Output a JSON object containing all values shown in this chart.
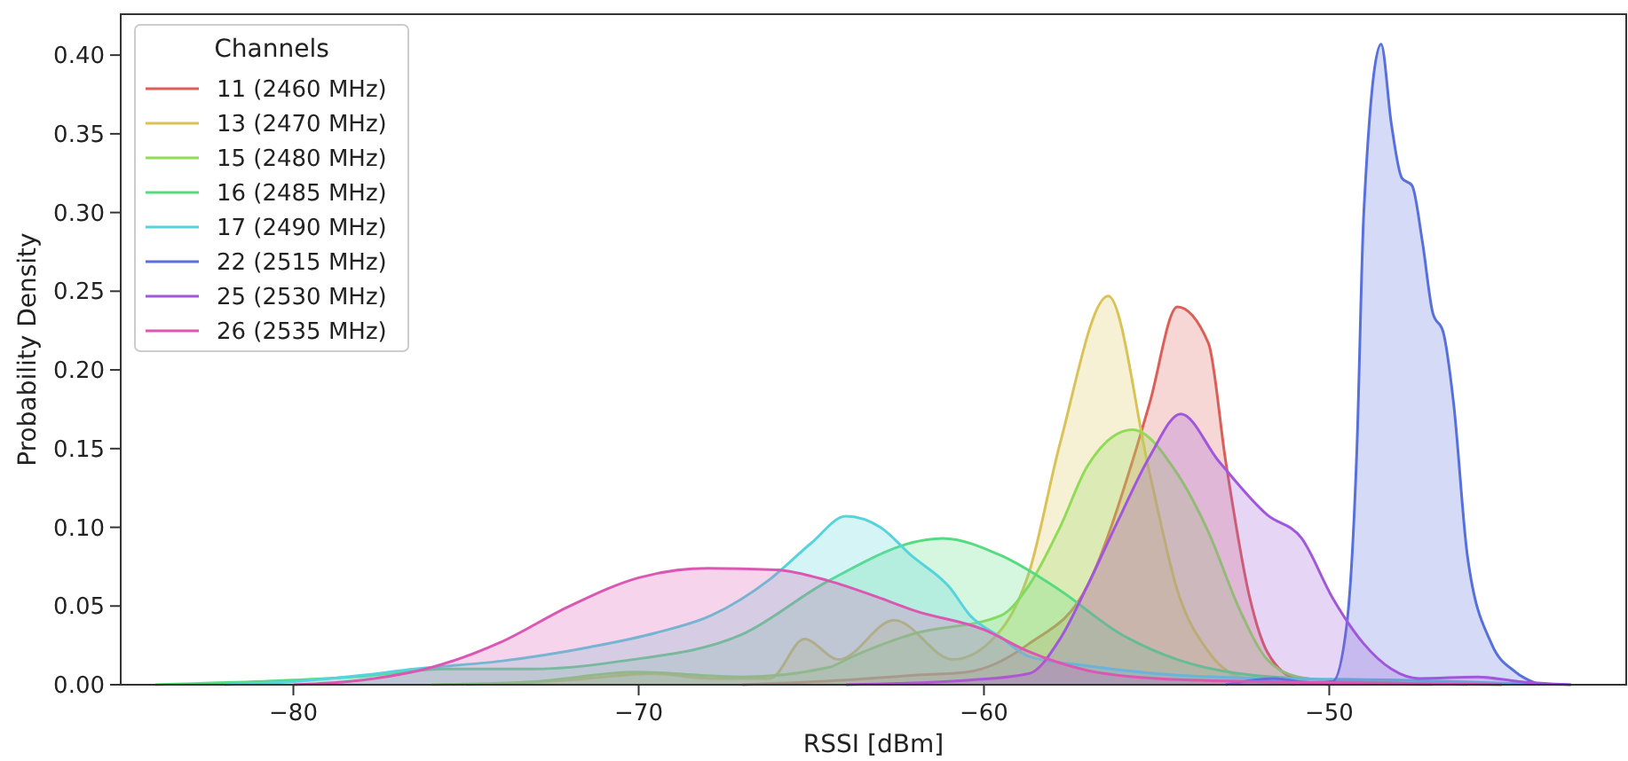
{
  "chart_data": {
    "type": "area",
    "xlabel": "RSSI [dBm]",
    "ylabel": "Probability Density",
    "legend_title": "Channels",
    "legend": "top left",
    "grid": false,
    "xlim": [
      -85,
      -41.4
    ],
    "ylim": [
      0,
      0.426
    ],
    "xticks": [
      {
        "value": -80,
        "label": "−80"
      },
      {
        "value": -70,
        "label": "−70"
      },
      {
        "value": -60,
        "label": "−60"
      },
      {
        "value": -50,
        "label": "−50"
      }
    ],
    "yticks": [
      {
        "value": 0,
        "label": "0.00"
      },
      {
        "value": 0.05,
        "label": "0.05"
      },
      {
        "value": 0.1,
        "label": "0.10"
      },
      {
        "value": 0.15,
        "label": "0.15"
      },
      {
        "value": 0.2,
        "label": "0.20"
      },
      {
        "value": 0.25,
        "label": "0.25"
      },
      {
        "value": 0.3,
        "label": "0.30"
      },
      {
        "value": 0.35,
        "label": "0.35"
      },
      {
        "value": 0.4,
        "label": "0.40"
      }
    ],
    "series": [
      {
        "name": "11 (2460 MHz)",
        "color": "#db5f57",
        "x": [
          -67,
          -64,
          -62,
          -60.5,
          -58.7,
          -57,
          -55.7,
          -55.2,
          -54.4,
          -53.5,
          -53,
          -52.3,
          -51.8,
          -50.9,
          -50
        ],
        "values": [
          0,
          0.003,
          0.006,
          0.008,
          0.026,
          0.063,
          0.142,
          0.179,
          0.24,
          0.217,
          0.142,
          0.055,
          0.021,
          0.003,
          0
        ]
      },
      {
        "name": "13 (2470 MHz)",
        "color": "#dbc257",
        "x": [
          -75,
          -72,
          -69.6,
          -67.9,
          -66.2,
          -65.2,
          -64.2,
          -62.6,
          -60.9,
          -59.5,
          -58.7,
          -57.8,
          -56.4,
          -55.2,
          -54.4,
          -53.5,
          -52.6,
          -51
        ],
        "values": [
          0,
          0.003,
          0.007,
          0.004,
          0.004,
          0.029,
          0.016,
          0.041,
          0.016,
          0.035,
          0.071,
          0.153,
          0.247,
          0.134,
          0.06,
          0.021,
          0.005,
          0
        ]
      },
      {
        "name": "15 (2480 MHz)",
        "color": "#91db57",
        "x": [
          -76,
          -73,
          -70.1,
          -67,
          -64.5,
          -63.8,
          -62.1,
          -59.5,
          -58.7,
          -57.8,
          -57,
          -55.7,
          -54.4,
          -53.5,
          -52.6,
          -51.8,
          -50.9,
          -49,
          -47
        ],
        "values": [
          0,
          0.002,
          0.008,
          0.005,
          0.011,
          0.018,
          0.032,
          0.044,
          0.063,
          0.1,
          0.139,
          0.162,
          0.134,
          0.097,
          0.048,
          0.016,
          0.005,
          0.001,
          0
        ]
      },
      {
        "name": "16 (2485 MHz)",
        "color": "#57db80",
        "x": [
          -84,
          -80,
          -78.2,
          -75.6,
          -73,
          -70.5,
          -67,
          -64.5,
          -61.7,
          -61.2,
          -59.5,
          -57.8,
          -56.1,
          -54.4,
          -52.6,
          -50,
          -46
        ],
        "values": [
          0,
          0.003,
          0.005,
          0.01,
          0.01,
          0.015,
          0.032,
          0.066,
          0.092,
          0.093,
          0.082,
          0.06,
          0.033,
          0.016,
          0.007,
          0.003,
          0
        ]
      },
      {
        "name": "17 (2490 MHz)",
        "color": "#57d3db",
        "x": [
          -82,
          -80,
          -78,
          -76.5,
          -74,
          -71.4,
          -69.5,
          -67.9,
          -66.2,
          -65,
          -64,
          -63,
          -62.1,
          -61,
          -60.4,
          -59.5,
          -58.7,
          -57,
          -55,
          -52,
          -48,
          -45,
          -43
        ],
        "values": [
          0,
          0.002,
          0.006,
          0.01,
          0.015,
          0.024,
          0.033,
          0.044,
          0.067,
          0.09,
          0.107,
          0.1,
          0.082,
          0.062,
          0.044,
          0.03,
          0.018,
          0.012,
          0.007,
          0.004,
          0.003,
          0.001,
          0
        ]
      },
      {
        "name": "22 (2515 MHz)",
        "color": "#5770db",
        "x": [
          -53,
          -51.6,
          -50.5,
          -49.9,
          -49.5,
          -49.2,
          -49,
          -48.5,
          -48.2,
          -47.9,
          -47.6,
          -47.3,
          -47,
          -46.7,
          -46.4,
          -46,
          -45.3,
          -44.6,
          -43.9
        ],
        "values": [
          0,
          0.004,
          0.001,
          0.002,
          0.037,
          0.15,
          0.3,
          0.407,
          0.356,
          0.322,
          0.317,
          0.281,
          0.236,
          0.224,
          0.179,
          0.082,
          0.026,
          0.008,
          0
        ]
      },
      {
        "name": "25 (2530 MHz)",
        "color": "#a157db",
        "x": [
          -64,
          -60.4,
          -58.7,
          -57.8,
          -57,
          -56.1,
          -55.2,
          -54.3,
          -53.2,
          -51.8,
          -50.8,
          -49.9,
          -49,
          -48.2,
          -47.4,
          -45.7,
          -44.5,
          -43
        ],
        "values": [
          0,
          0.003,
          0.007,
          0.029,
          0.063,
          0.105,
          0.145,
          0.172,
          0.142,
          0.108,
          0.093,
          0.055,
          0.026,
          0.01,
          0.004,
          0.005,
          0.002,
          0
        ]
      },
      {
        "name": "26 (2535 MHz)",
        "color": "#db57b2",
        "x": [
          -80,
          -78,
          -76,
          -74,
          -72,
          -70,
          -68,
          -66,
          -64.5,
          -63,
          -62,
          -60,
          -58.7,
          -57,
          -55,
          -52,
          -48,
          -45
        ],
        "values": [
          0,
          0.003,
          0.011,
          0.027,
          0.05,
          0.068,
          0.074,
          0.073,
          0.066,
          0.055,
          0.047,
          0.035,
          0.021,
          0.009,
          0.004,
          0.002,
          0.001,
          0
        ]
      }
    ]
  }
}
